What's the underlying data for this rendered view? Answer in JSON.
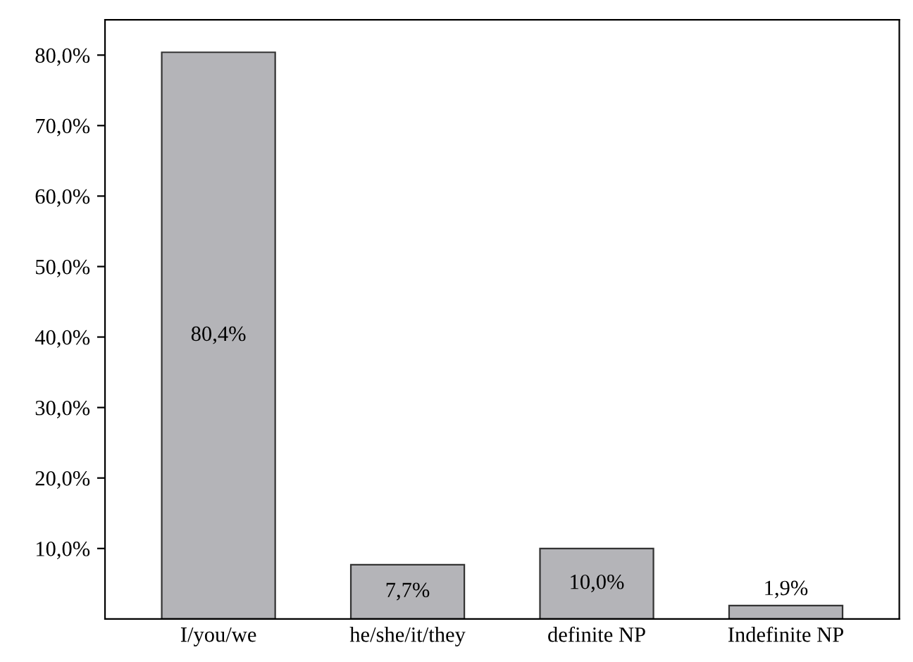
{
  "chart_data": {
    "type": "bar",
    "categories": [
      "I/you/we",
      "he/she/it/they",
      "definite NP",
      "Indefinite NP"
    ],
    "values": [
      80.4,
      7.7,
      10.0,
      1.9
    ],
    "value_labels": [
      "80,4%",
      "7,7%",
      "10,0%",
      "1,9%"
    ],
    "color": "#b4b4b8",
    "ylim": [
      0,
      85
    ],
    "yticks": [
      {
        "value": 10,
        "label": "10,0%"
      },
      {
        "value": 20,
        "label": "20,0%"
      },
      {
        "value": 30,
        "label": "30,0%"
      },
      {
        "value": 40,
        "label": "40,0%"
      },
      {
        "value": 50,
        "label": "50,0%"
      },
      {
        "value": 60,
        "label": "60,0%"
      },
      {
        "value": 70,
        "label": "70,0%"
      },
      {
        "value": 80,
        "label": "80,0%"
      }
    ],
    "grid": false,
    "legend": false
  }
}
